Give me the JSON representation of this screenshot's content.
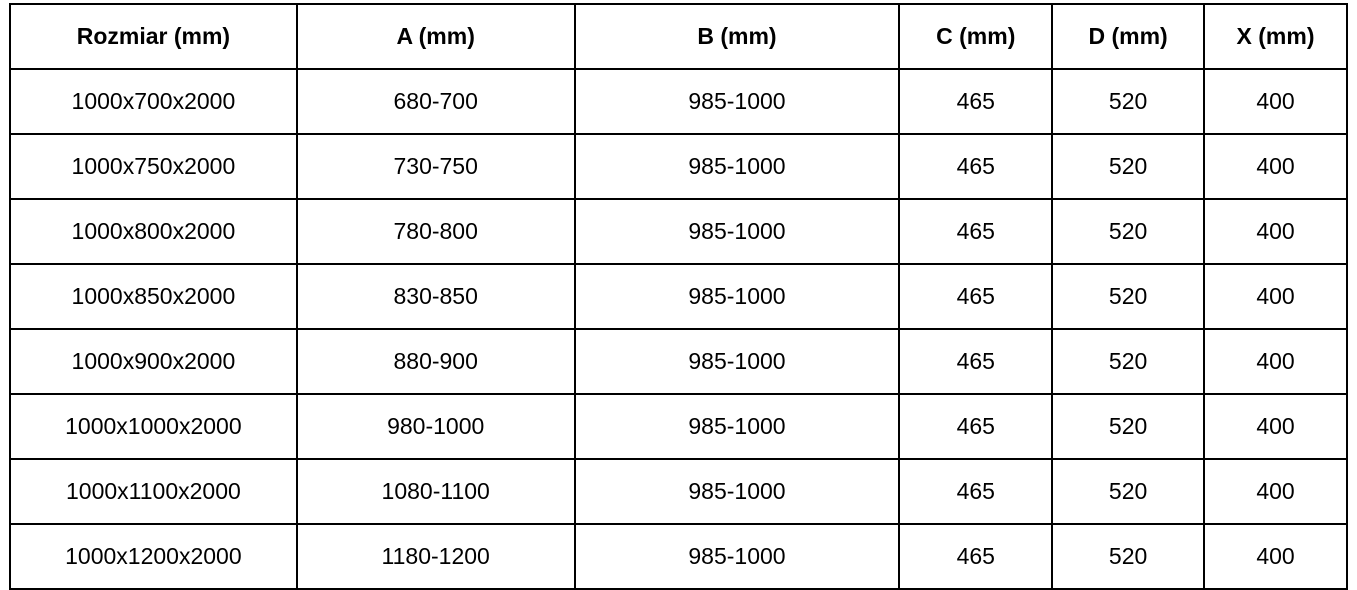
{
  "table": {
    "columns": [
      "Rozmiar (mm)",
      "A (mm)",
      "B (mm)",
      "C (mm)",
      "D (mm)",
      "X (mm)"
    ],
    "rows": [
      [
        "1000x700x2000",
        "680-700",
        "985-1000",
        "465",
        "520",
        "400"
      ],
      [
        "1000x750x2000",
        "730-750",
        "985-1000",
        "465",
        "520",
        "400"
      ],
      [
        "1000x800x2000",
        "780-800",
        "985-1000",
        "465",
        "520",
        "400"
      ],
      [
        "1000x850x2000",
        "830-850",
        "985-1000",
        "465",
        "520",
        "400"
      ],
      [
        "1000x900x2000",
        "880-900",
        "985-1000",
        "465",
        "520",
        "400"
      ],
      [
        "1000x1000x2000",
        "980-1000",
        "985-1000",
        "465",
        "520",
        "400"
      ],
      [
        "1000x1100x2000",
        "1080-1100",
        "985-1000",
        "465",
        "520",
        "400"
      ],
      [
        "1000x1200x2000",
        "1180-1200",
        "985-1000",
        "465",
        "520",
        "400"
      ]
    ],
    "colors": {
      "border": "#000000",
      "text": "#000000",
      "background": "#ffffff"
    }
  }
}
